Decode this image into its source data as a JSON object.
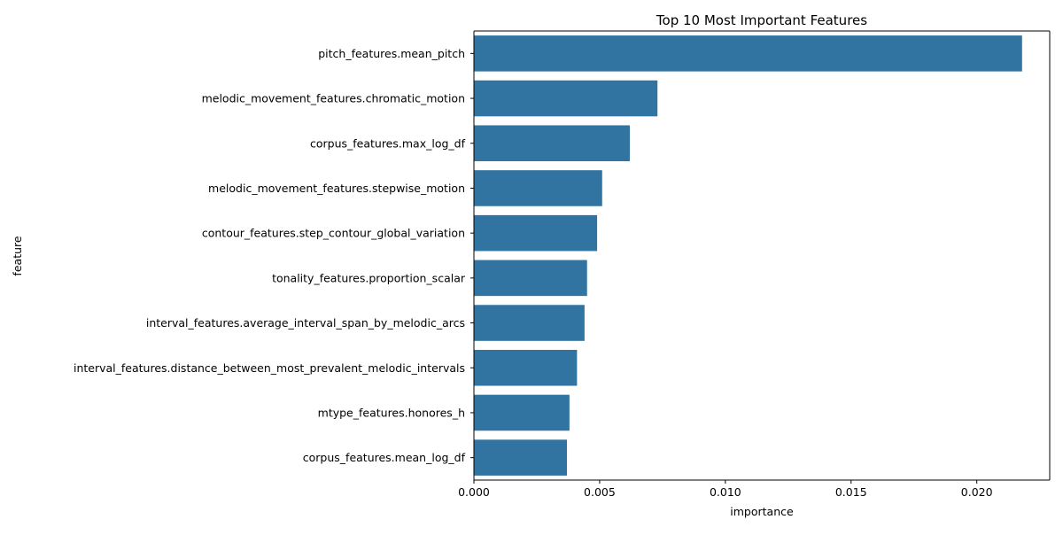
{
  "chart_data": {
    "type": "bar",
    "orientation": "horizontal",
    "title": "Top 10 Most Important Features",
    "xlabel": "importance",
    "ylabel": "feature",
    "xlim": [
      0,
      0.0229
    ],
    "x_ticks": [
      "0.000",
      "0.005",
      "0.010",
      "0.015",
      "0.020"
    ],
    "x_tick_values": [
      0,
      0.005,
      0.01,
      0.015,
      0.02
    ],
    "grid": false,
    "legend": "none",
    "bar_color": "#3274a1",
    "categories": [
      "pitch_features.mean_pitch",
      "melodic_movement_features.chromatic_motion",
      "corpus_features.max_log_df",
      "melodic_movement_features.stepwise_motion",
      "contour_features.step_contour_global_variation",
      "tonality_features.proportion_scalar",
      "interval_features.average_interval_span_by_melodic_arcs",
      "interval_features.distance_between_most_prevalent_melodic_intervals",
      "mtype_features.honores_h",
      "corpus_features.mean_log_df"
    ],
    "values": [
      0.0218,
      0.0073,
      0.0062,
      0.0051,
      0.0049,
      0.0045,
      0.0044,
      0.0041,
      0.0038,
      0.0037
    ]
  }
}
